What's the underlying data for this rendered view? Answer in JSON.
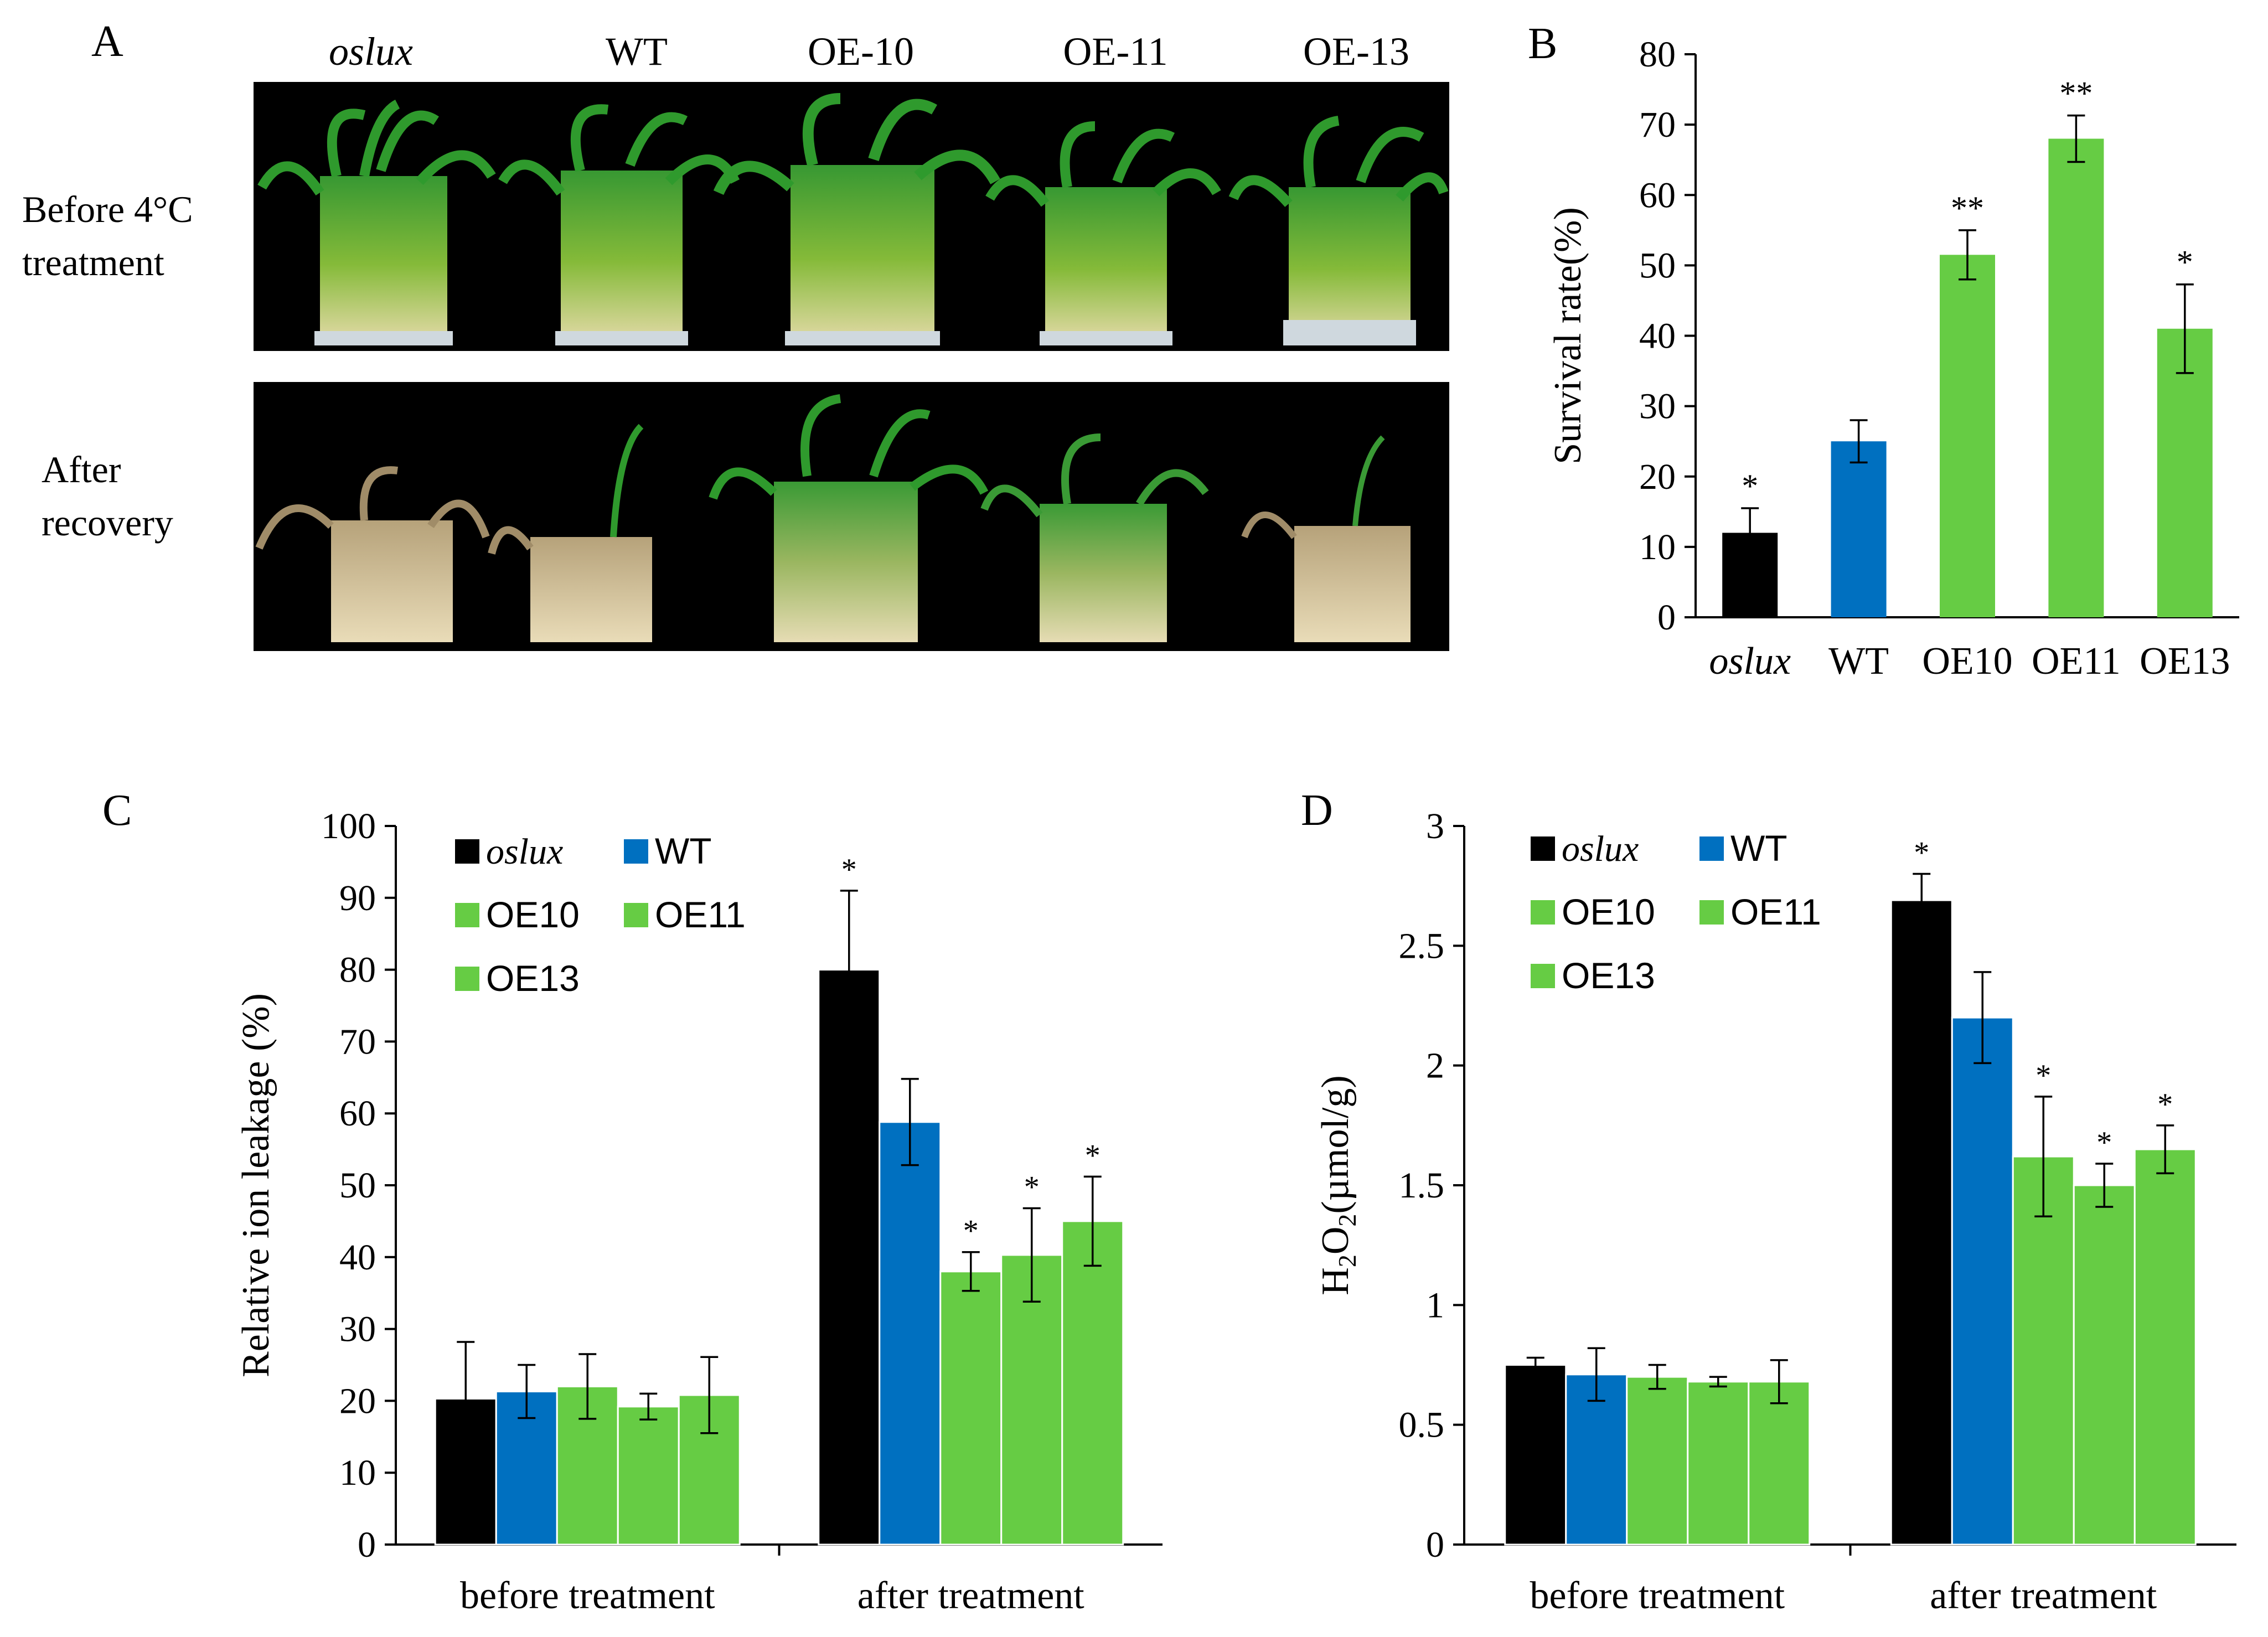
{
  "panel_a": {
    "letter": "A",
    "genotypes": [
      "oslux",
      "WT",
      "OE-10",
      "OE-11",
      "OE-13"
    ],
    "row_labels": [
      {
        "line1": "Before 4°C",
        "line2": "treatment"
      },
      {
        "line1": "After",
        "line2": "recovery"
      }
    ]
  },
  "colors": {
    "oslux": "#000000",
    "wt": "#0070c0",
    "oe": "#66cc44",
    "axis": "#000000",
    "photo_bg": "#000000"
  },
  "chart_data": [
    {
      "id": "B",
      "letter": "B",
      "type": "bar",
      "title": "",
      "xlabel": "",
      "ylabel": "Survival rate(%)",
      "ylim": [
        0,
        80
      ],
      "yticks": [
        0,
        10,
        20,
        30,
        40,
        50,
        60,
        70,
        80
      ],
      "categories": [
        "oslux",
        "WT",
        "OE10",
        "OE11",
        "OE13"
      ],
      "values": [
        12,
        25,
        51.5,
        68,
        41
      ],
      "errors": [
        3.5,
        3,
        3.5,
        3.3,
        6.3
      ],
      "significance": [
        "*",
        "",
        "**",
        "**",
        "*"
      ]
    },
    {
      "id": "C",
      "letter": "C",
      "type": "bar",
      "ylabel": "Relative ion leakage (%)",
      "ylim": [
        0,
        100
      ],
      "yticks": [
        0,
        10,
        20,
        30,
        40,
        50,
        60,
        70,
        80,
        90,
        100
      ],
      "categories": [
        "before treatment",
        "after  treatment"
      ],
      "legend": [
        "oslux",
        "WT",
        "OE10",
        "OE11",
        "OE13"
      ],
      "series": [
        {
          "name": "oslux",
          "values": [
            20.3,
            80.0
          ],
          "errors": [
            7.9,
            11.0
          ],
          "significance": [
            "",
            "*"
          ]
        },
        {
          "name": "WT",
          "values": [
            21.3,
            58.8
          ],
          "errors": [
            3.7,
            6.0
          ],
          "significance": [
            "",
            ""
          ]
        },
        {
          "name": "OE10",
          "values": [
            22.0,
            38.0
          ],
          "errors": [
            4.5,
            2.7
          ],
          "significance": [
            "",
            "*"
          ]
        },
        {
          "name": "OE11",
          "values": [
            19.2,
            40.3
          ],
          "errors": [
            1.8,
            6.5
          ],
          "significance": [
            "",
            "*"
          ]
        },
        {
          "name": "OE13",
          "values": [
            20.8,
            45.0
          ],
          "errors": [
            5.3,
            6.2
          ],
          "significance": [
            "",
            "*"
          ]
        }
      ]
    },
    {
      "id": "D",
      "letter": "D",
      "type": "bar",
      "ylabel_main": "H",
      "ylabel_sub1": "2",
      "ylabel_mid": "O",
      "ylabel_sub2": "2",
      "ylabel_tail": "(µmol/g)",
      "ylim": [
        0,
        3
      ],
      "yticks": [
        0,
        0.5,
        1,
        1.5,
        2,
        2.5,
        3
      ],
      "ytick_labels": [
        "0",
        "0.5",
        "1",
        "1.5",
        "2",
        "2.5",
        "3"
      ],
      "categories": [
        "before treatment",
        "after  treatment"
      ],
      "legend": [
        "oslux",
        "WT",
        "OE10",
        "OE11",
        "OE13"
      ],
      "series": [
        {
          "name": "oslux",
          "values": [
            0.75,
            2.69
          ],
          "errors": [
            0.03,
            0.11
          ],
          "significance": [
            "",
            "*"
          ]
        },
        {
          "name": "WT",
          "values": [
            0.71,
            2.2
          ],
          "errors": [
            0.11,
            0.19
          ],
          "significance": [
            "",
            ""
          ]
        },
        {
          "name": "OE10",
          "values": [
            0.7,
            1.62
          ],
          "errors": [
            0.05,
            0.25
          ],
          "significance": [
            "",
            "*"
          ]
        },
        {
          "name": "OE11",
          "values": [
            0.68,
            1.5
          ],
          "errors": [
            0.02,
            0.09
          ],
          "significance": [
            "",
            "*"
          ]
        },
        {
          "name": "OE13",
          "values": [
            0.68,
            1.65
          ],
          "errors": [
            0.09,
            0.1
          ],
          "significance": [
            "",
            "*"
          ]
        }
      ]
    }
  ]
}
